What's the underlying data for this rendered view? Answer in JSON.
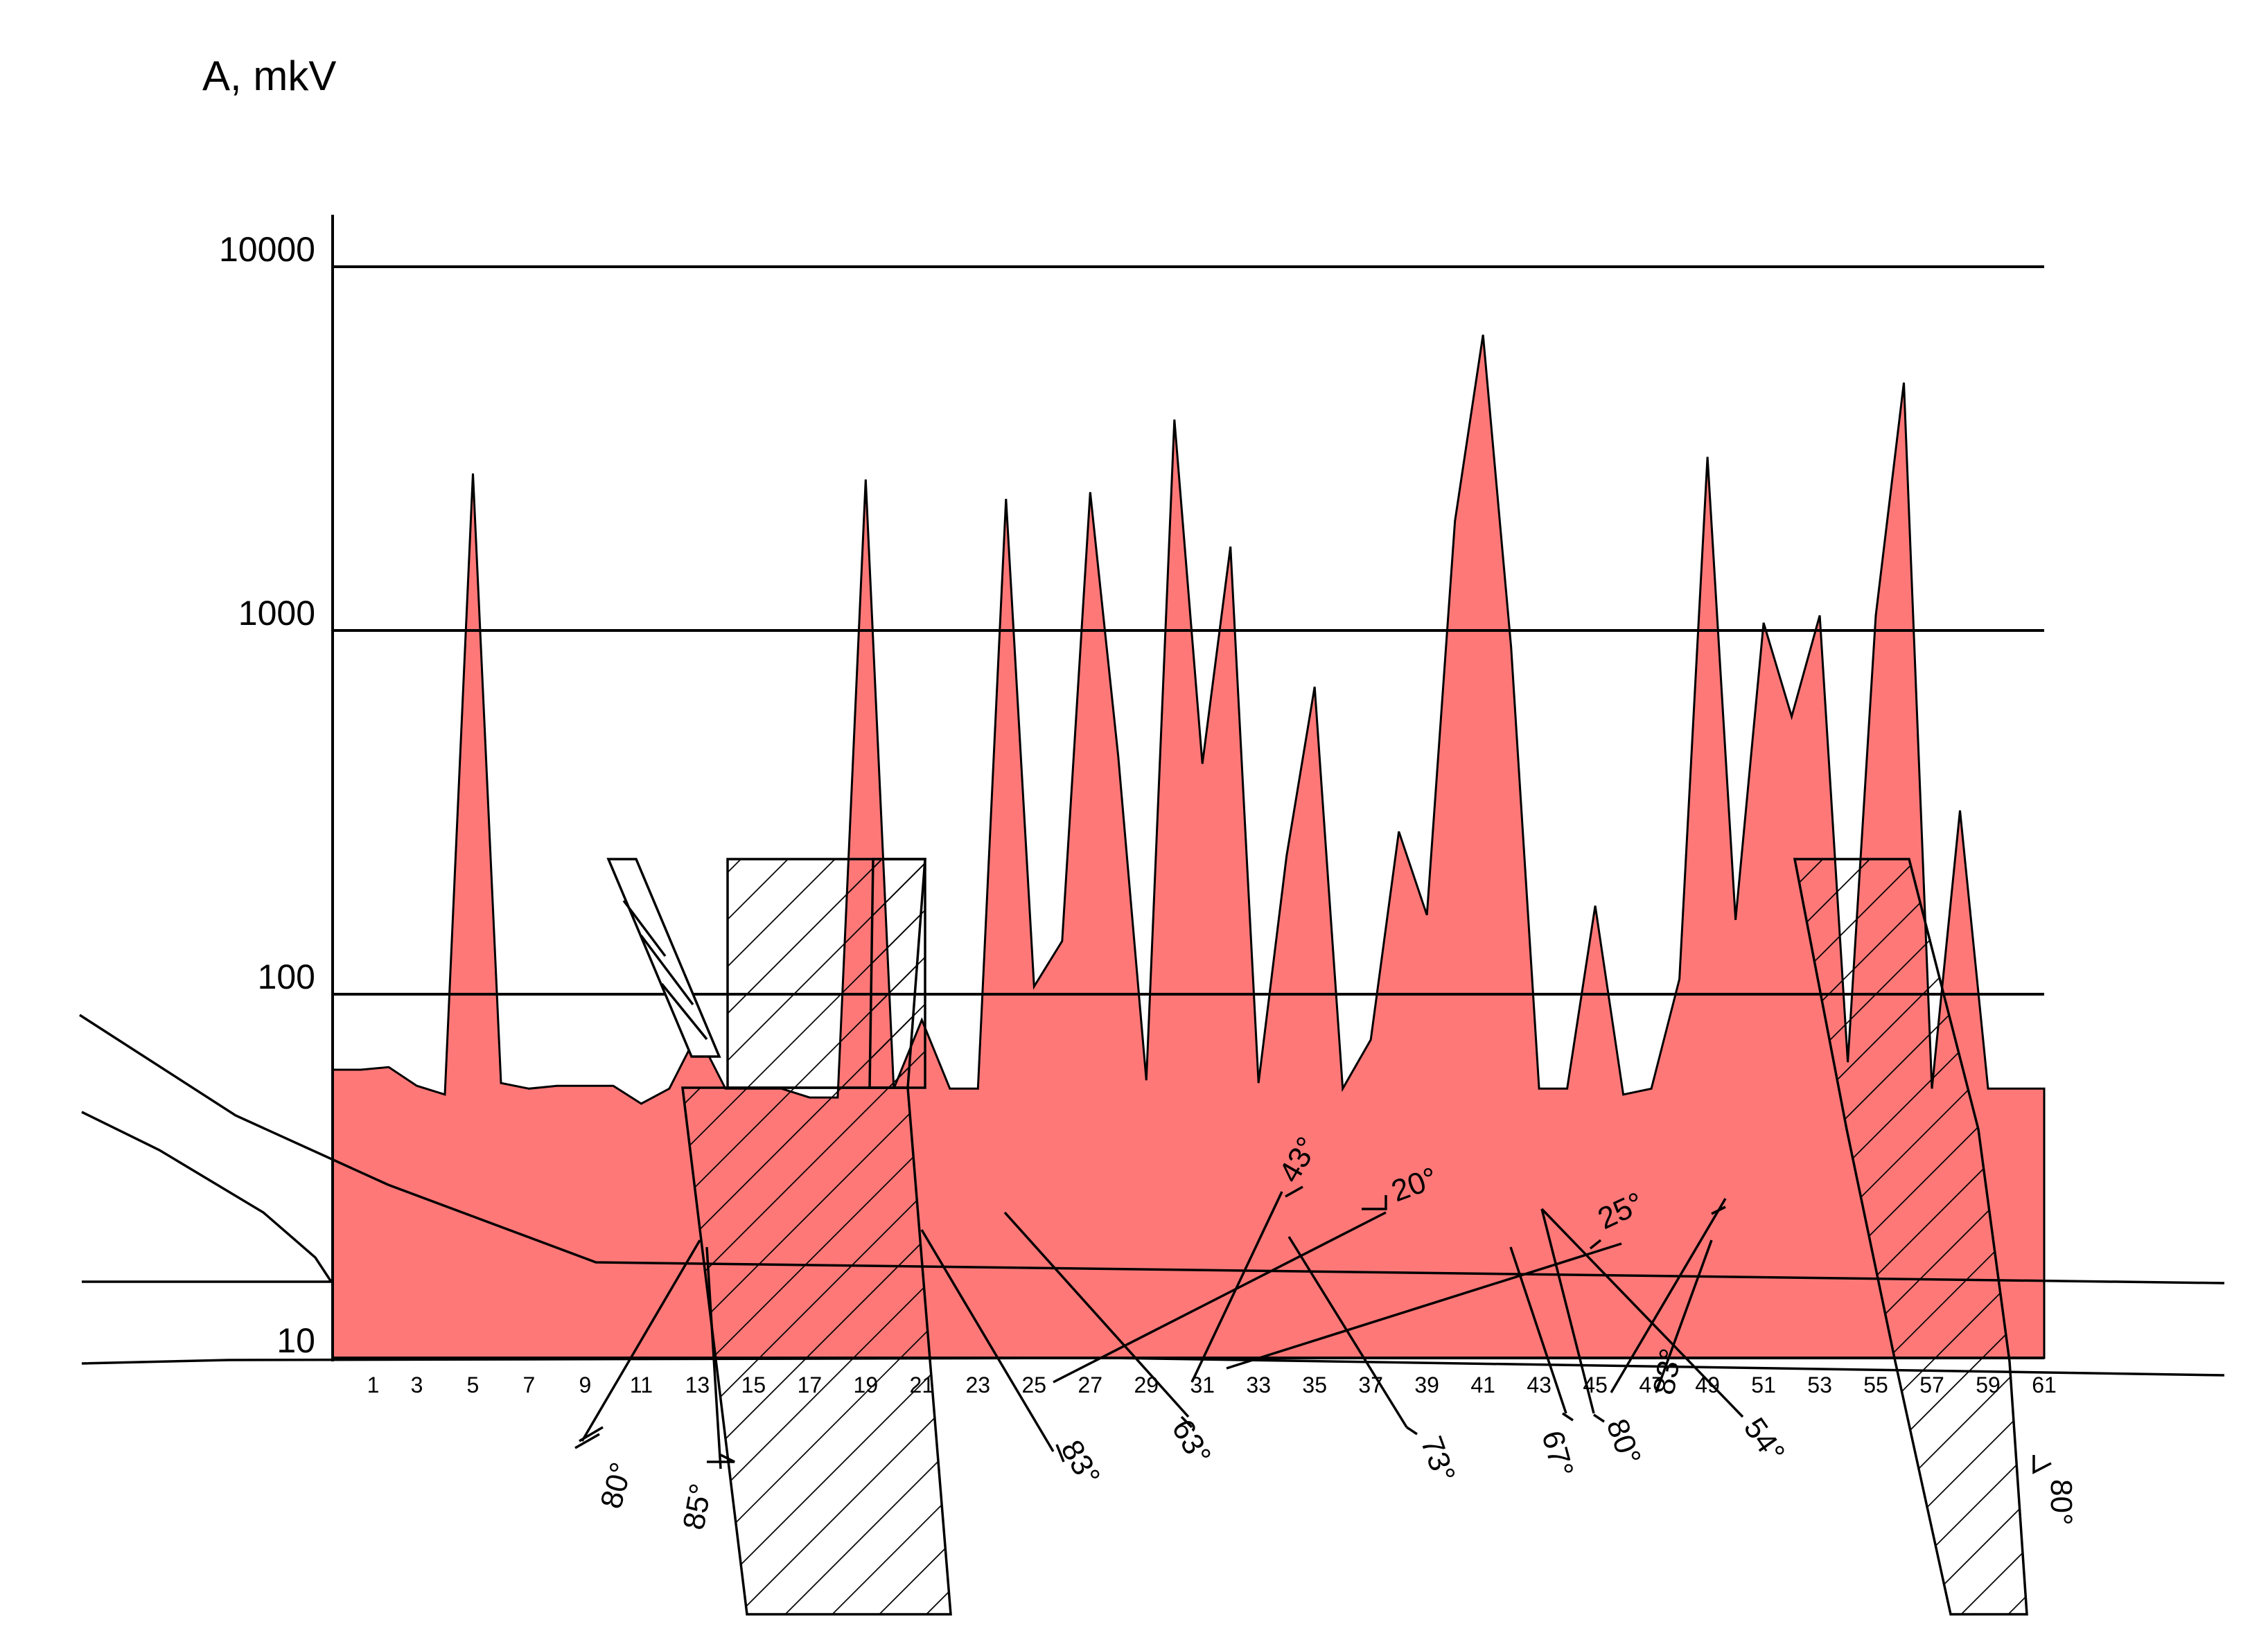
{
  "chart_data": {
    "type": "area",
    "title": "",
    "ylabel": "A,  mkV",
    "xlabel": "",
    "y_scale": "log",
    "ylim": [
      10,
      10000
    ],
    "y_ticks": [
      "10",
      "100",
      "1000",
      "10000"
    ],
    "x_ticks": [
      "1",
      "3",
      "5",
      "7",
      "9",
      "11",
      "13",
      "15",
      "17",
      "19",
      "21",
      "23",
      "25",
      "27",
      "29",
      "31",
      "33",
      "35",
      "37",
      "39",
      "41",
      "43",
      "45",
      "47",
      "49",
      "51",
      "53",
      "55",
      "57",
      "59",
      "61"
    ],
    "fill_color": "#ff7878",
    "series": [
      {
        "name": "",
        "x": [
          0,
          1,
          2,
          3,
          4,
          5,
          6,
          7,
          8,
          9,
          10,
          11,
          12,
          13,
          14,
          15,
          16,
          17,
          18,
          19,
          20,
          21,
          22,
          23,
          24,
          25,
          26,
          27,
          28,
          29,
          30,
          31,
          32,
          33,
          34,
          35,
          36,
          37,
          38,
          39,
          40,
          41,
          42,
          43,
          44,
          45,
          46,
          47,
          48,
          49,
          50,
          51,
          52,
          53,
          54,
          55,
          56,
          57,
          58,
          59,
          60,
          61
        ],
        "values": [
          62,
          62,
          63,
          56,
          53,
          2700,
          57,
          55,
          56,
          56,
          56,
          50,
          55,
          78,
          55,
          55,
          55,
          52,
          52,
          2600,
          55,
          85,
          55,
          55,
          2300,
          105,
          140,
          2400,
          450,
          58,
          3800,
          430,
          1700,
          57,
          240,
          700,
          55,
          75,
          280,
          165,
          2000,
          6500,
          900,
          55,
          55,
          175,
          53,
          55,
          110,
          3000,
          160,
          1050,
          580,
          1100,
          65,
          1100,
          4800,
          55,
          320,
          55,
          55,
          55
        ],
        "x_end": 61
      }
    ],
    "annotations": [
      "80°",
      "85°",
      "83°",
      "63°",
      "43°",
      "20°",
      "73°",
      "25°",
      "67°",
      "80°",
      "83°",
      "54°",
      "80°"
    ]
  }
}
